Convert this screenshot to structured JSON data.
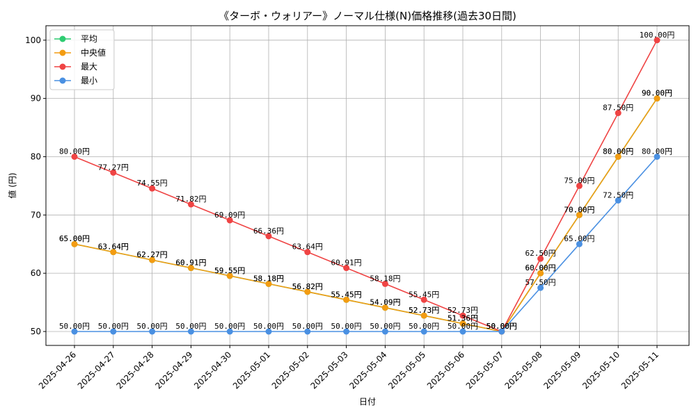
{
  "chart_data": {
    "type": "line",
    "title": "《ターボ・ウォリアー》ノーマル仕様(N)価格推移(過去30日間)",
    "xlabel": "日付",
    "ylabel": "値 (円)",
    "ylim": [
      47.5,
      102.5
    ],
    "yticks": [
      50,
      60,
      70,
      80,
      90,
      100
    ],
    "grid": true,
    "legend_position": "top-left",
    "label_suffix": "円",
    "categories": [
      "2025-04-26",
      "2025-04-27",
      "2025-04-28",
      "2025-04-29",
      "2025-04-30",
      "2025-05-01",
      "2025-05-02",
      "2025-05-03",
      "2025-05-04",
      "2025-05-05",
      "2025-05-06",
      "2025-05-07",
      "2025-05-08",
      "2025-05-09",
      "2025-05-10",
      "2025-05-11"
    ],
    "series": [
      {
        "name": "平均",
        "color": "#2ecc71",
        "values": [
          65.0,
          63.64,
          62.27,
          60.91,
          59.55,
          58.18,
          56.82,
          55.45,
          54.09,
          52.73,
          51.36,
          50.0,
          60.0,
          70.0,
          80.0,
          90.0
        ]
      },
      {
        "name": "中央値",
        "color": "#f39c12",
        "values": [
          65.0,
          63.64,
          62.27,
          60.91,
          59.55,
          58.18,
          56.82,
          55.45,
          54.09,
          52.73,
          51.36,
          50.0,
          60.0,
          70.0,
          80.0,
          90.0
        ]
      },
      {
        "name": "最大",
        "color": "#ef4444",
        "values": [
          80.0,
          77.27,
          74.55,
          71.82,
          69.09,
          66.36,
          63.64,
          60.91,
          58.18,
          55.45,
          52.73,
          50.0,
          62.5,
          75.0,
          87.5,
          100.0
        ]
      },
      {
        "name": "最小",
        "color": "#4a90e2",
        "values": [
          50.0,
          50.0,
          50.0,
          50.0,
          50.0,
          50.0,
          50.0,
          50.0,
          50.0,
          50.0,
          50.0,
          50.0,
          57.5,
          65.0,
          72.5,
          80.0
        ]
      }
    ]
  }
}
